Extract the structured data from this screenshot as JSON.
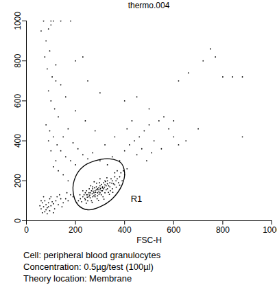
{
  "chart_data": {
    "type": "scatter",
    "title": "thermo.004",
    "x_label": "FSC-H",
    "color": "#000000",
    "grid": false,
    "xlim": [
      0,
      1000
    ],
    "ylim": [
      0,
      1000
    ],
    "xticks": [
      0,
      200,
      400,
      600,
      800,
      1000
    ],
    "yticks": [
      0,
      200,
      400,
      600,
      800,
      1000
    ],
    "points": [
      [
        220,
        110
      ],
      [
        230,
        120
      ],
      [
        240,
        105
      ],
      [
        250,
        130
      ],
      [
        260,
        140
      ],
      [
        270,
        120
      ],
      [
        280,
        150
      ],
      [
        290,
        160
      ],
      [
        300,
        140
      ],
      [
        310,
        170
      ],
      [
        320,
        180
      ],
      [
        330,
        160
      ],
      [
        340,
        190
      ],
      [
        350,
        200
      ],
      [
        360,
        180
      ],
      [
        370,
        210
      ],
      [
        380,
        220
      ],
      [
        240,
        140
      ],
      [
        250,
        100
      ],
      [
        260,
        115
      ],
      [
        270,
        160
      ],
      [
        280,
        130
      ],
      [
        290,
        125
      ],
      [
        300,
        175
      ],
      [
        310,
        150
      ],
      [
        320,
        140
      ],
      [
        330,
        200
      ],
      [
        340,
        170
      ],
      [
        350,
        160
      ],
      [
        360,
        220
      ],
      [
        225,
        95
      ],
      [
        235,
        130
      ],
      [
        245,
        150
      ],
      [
        255,
        120
      ],
      [
        265,
        100
      ],
      [
        275,
        140
      ],
      [
        285,
        170
      ],
      [
        295,
        145
      ],
      [
        305,
        130
      ],
      [
        315,
        190
      ],
      [
        325,
        155
      ],
      [
        335,
        175
      ],
      [
        345,
        210
      ],
      [
        355,
        185
      ],
      [
        365,
        200
      ],
      [
        375,
        190
      ],
      [
        385,
        240
      ],
      [
        230,
        150
      ],
      [
        262,
        175
      ],
      [
        288,
        110
      ],
      [
        298,
        190
      ],
      [
        312,
        120
      ],
      [
        328,
        215
      ],
      [
        342,
        150
      ],
      [
        268,
        135
      ],
      [
        278,
        165
      ],
      [
        292,
        155
      ],
      [
        302,
        162
      ],
      [
        318,
        168
      ],
      [
        282,
        142
      ],
      [
        296,
        132
      ],
      [
        306,
        182
      ],
      [
        272,
        148
      ],
      [
        258,
        128
      ],
      [
        248,
        118
      ],
      [
        238,
        112
      ],
      [
        286,
        188
      ],
      [
        322,
        196
      ],
      [
        334,
        142
      ],
      [
        348,
        188
      ],
      [
        212,
        100
      ],
      [
        218,
        130
      ],
      [
        205,
        90
      ],
      [
        395,
        250
      ],
      [
        400,
        230
      ],
      [
        390,
        200
      ],
      [
        410,
        260
      ],
      [
        370,
        250
      ],
      [
        360,
        240
      ],
      [
        300,
        210
      ],
      [
        276,
        195
      ],
      [
        256,
        160
      ],
      [
        244,
        88
      ],
      [
        268,
        92
      ],
      [
        294,
        102
      ],
      [
        316,
        108
      ],
      [
        338,
        132
      ],
      [
        352,
        142
      ],
      [
        366,
        168
      ],
      [
        380,
        178
      ],
      [
        275,
        125
      ],
      [
        285,
        155
      ],
      [
        295,
        165
      ],
      [
        305,
        150
      ],
      [
        315,
        160
      ],
      [
        325,
        175
      ],
      [
        265,
        150
      ],
      [
        255,
        140
      ],
      [
        245,
        130
      ],
      [
        290,
        140
      ],
      [
        300,
        155
      ],
      [
        310,
        165
      ],
      [
        280,
        120
      ],
      [
        270,
        170
      ],
      [
        320,
        200
      ],
      [
        330,
        185
      ],
      [
        60,
        60
      ],
      [
        70,
        70
      ],
      [
        80,
        80
      ],
      [
        90,
        90
      ],
      [
        100,
        75
      ],
      [
        110,
        85
      ],
      [
        65,
        90
      ],
      [
        75,
        100
      ],
      [
        85,
        65
      ],
      [
        95,
        110
      ],
      [
        105,
        95
      ],
      [
        120,
        100
      ],
      [
        130,
        80
      ],
      [
        140,
        110
      ],
      [
        60,
        100
      ],
      [
        70,
        120
      ],
      [
        80,
        55
      ],
      [
        90,
        70
      ],
      [
        100,
        120
      ],
      [
        115,
        60
      ],
      [
        125,
        120
      ],
      [
        150,
        90
      ],
      [
        160,
        110
      ],
      [
        170,
        100
      ],
      [
        180,
        130
      ],
      [
        190,
        120
      ],
      [
        65,
        40
      ],
      [
        75,
        45
      ],
      [
        85,
        35
      ],
      [
        95,
        50
      ],
      [
        110,
        40
      ],
      [
        55,
        75
      ],
      [
        135,
        130
      ],
      [
        145,
        70
      ],
      [
        165,
        140
      ],
      [
        80,
        900
      ],
      [
        90,
        960
      ],
      [
        100,
        980
      ],
      [
        110,
        1000
      ],
      [
        95,
        850
      ],
      [
        75,
        820
      ],
      [
        85,
        760
      ],
      [
        105,
        720
      ],
      [
        120,
        700
      ],
      [
        90,
        650
      ],
      [
        100,
        600
      ],
      [
        115,
        560
      ],
      [
        130,
        520
      ],
      [
        80,
        480
      ],
      [
        95,
        450
      ],
      [
        110,
        420
      ],
      [
        125,
        380
      ],
      [
        140,
        350
      ],
      [
        160,
        320
      ],
      [
        180,
        300
      ],
      [
        200,
        280
      ],
      [
        150,
        420
      ],
      [
        170,
        460
      ],
      [
        190,
        390
      ],
      [
        210,
        360
      ],
      [
        230,
        330
      ],
      [
        250,
        310
      ],
      [
        270,
        340
      ],
      [
        300,
        300
      ],
      [
        330,
        280
      ],
      [
        350,
        320
      ],
      [
        380,
        300
      ],
      [
        400,
        350
      ],
      [
        420,
        380
      ],
      [
        440,
        400
      ],
      [
        460,
        420
      ],
      [
        480,
        450
      ],
      [
        500,
        480
      ],
      [
        520,
        400
      ],
      [
        540,
        500
      ],
      [
        560,
        520
      ],
      [
        580,
        460
      ],
      [
        600,
        420
      ],
      [
        620,
        380
      ],
      [
        450,
        330
      ],
      [
        470,
        360
      ],
      [
        490,
        300
      ],
      [
        510,
        340
      ],
      [
        410,
        460
      ],
      [
        430,
        500
      ],
      [
        360,
        420
      ],
      [
        320,
        380
      ],
      [
        280,
        450
      ],
      [
        240,
        500
      ],
      [
        200,
        550
      ],
      [
        160,
        620
      ],
      [
        140,
        680
      ],
      [
        120,
        780
      ],
      [
        250,
        700
      ],
      [
        300,
        640
      ],
      [
        200,
        800
      ],
      [
        230,
        820
      ],
      [
        100,
        1000
      ],
      [
        140,
        1000
      ],
      [
        180,
        1000
      ],
      [
        750,
        860
      ],
      [
        770,
        820
      ],
      [
        800,
        720
      ],
      [
        720,
        800
      ],
      [
        840,
        720
      ],
      [
        880,
        720
      ],
      [
        660,
        740
      ],
      [
        620,
        700
      ],
      [
        500,
        560
      ],
      [
        450,
        620
      ],
      [
        400,
        600
      ],
      [
        550,
        360
      ],
      [
        600,
        500
      ],
      [
        700,
        460
      ],
      [
        650,
        400
      ],
      [
        130,
        250
      ],
      [
        150,
        230
      ],
      [
        120,
        300
      ],
      [
        100,
        350
      ],
      [
        90,
        400
      ],
      [
        110,
        270
      ],
      [
        170,
        200
      ],
      [
        60,
        950
      ],
      [
        70,
        1000
      ],
      [
        880,
        420
      ]
    ],
    "gate": {
      "label": "R1",
      "x": [
        190,
        200,
        230,
        280,
        340,
        385,
        400,
        390,
        350,
        300,
        250,
        210
      ],
      "y": [
        150,
        220,
        270,
        300,
        310,
        290,
        240,
        180,
        110,
        70,
        55,
        80
      ],
      "label_x": 425,
      "label_y": 110
    },
    "caption": [
      "Cell: peripheral blood granulocytes",
      "Concentration: 0.5µg/test (100µl)",
      "Theory location: Membrane"
    ]
  }
}
